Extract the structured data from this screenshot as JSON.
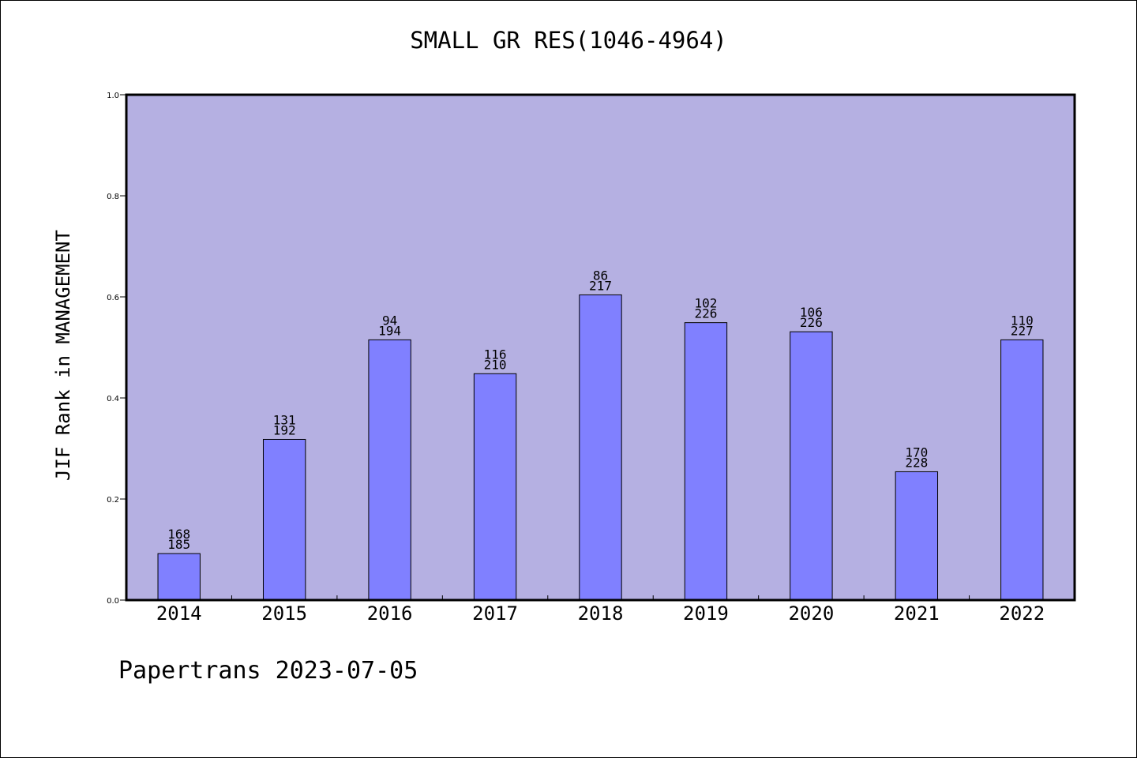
{
  "chart_data": {
    "type": "bar",
    "title": "SMALL GR RES(1046-4964)",
    "xlabel": "",
    "ylabel": "JIF Rank in MANAGEMENT",
    "ylim": [
      0,
      1.0
    ],
    "yticks": [
      "0.0",
      "0.2",
      "0.4",
      "0.6",
      "0.8",
      "1.0"
    ],
    "grid": false,
    "categories": [
      "2014",
      "2015",
      "2016",
      "2017",
      "2018",
      "2019",
      "2020",
      "2021",
      "2022"
    ],
    "values": [
      0.092,
      0.318,
      0.515,
      0.448,
      0.604,
      0.549,
      0.531,
      0.254,
      0.515
    ],
    "rank_labels": [
      {
        "rank": "168",
        "total": "185"
      },
      {
        "rank": "131",
        "total": "192"
      },
      {
        "rank": "94",
        "total": "194"
      },
      {
        "rank": "116",
        "total": "210"
      },
      {
        "rank": "86",
        "total": "217"
      },
      {
        "rank": "102",
        "total": "226"
      },
      {
        "rank": "106",
        "total": "226"
      },
      {
        "rank": "170",
        "total": "228"
      },
      {
        "rank": "110",
        "total": "227"
      }
    ],
    "colors": {
      "plot_background": "#b5b0e2",
      "bar_fill": "#8080ff",
      "bar_stroke": "#000000"
    }
  },
  "footer": "Papertrans 2023-07-05"
}
